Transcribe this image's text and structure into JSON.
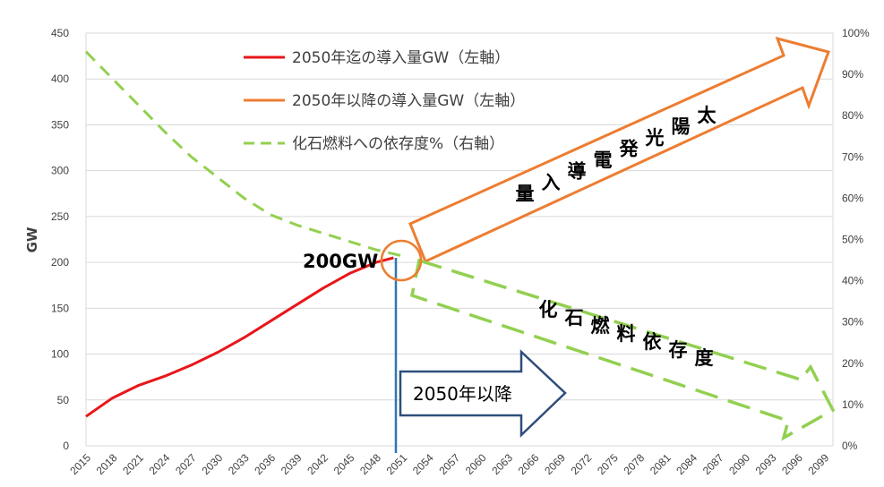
{
  "chart_data": {
    "type": "line",
    "xlabel": "",
    "ylabel": "GW",
    "y2label": "",
    "ylim": [
      0,
      450
    ],
    "y2lim": [
      0,
      100
    ],
    "yticks": [
      "0",
      "50",
      "100",
      "150",
      "200",
      "250",
      "300",
      "350",
      "400",
      "450"
    ],
    "y2ticks": [
      "0%",
      "10%",
      "20%",
      "30%",
      "40%",
      "50%",
      "60%",
      "70%",
      "80%",
      "90%",
      "100%"
    ],
    "xlim": [
      2015,
      2100
    ],
    "xticks": [
      "2015",
      "2018",
      "2021",
      "2024",
      "2027",
      "2030",
      "2033",
      "2036",
      "2039",
      "2042",
      "2045",
      "2048",
      "2051",
      "2054",
      "2057",
      "2060",
      "2063",
      "2066",
      "2069",
      "2072",
      "2075",
      "2078",
      "2081",
      "2084",
      "2087",
      "2090",
      "2093",
      "2096",
      "2099"
    ],
    "grid": true,
    "legend": "top-center",
    "series": [
      {
        "name": "2050年迄の導入量GW（左軸）",
        "axis": "left",
        "color": "#e8161a",
        "style": "solid",
        "x": [
          2015,
          2018,
          2021,
          2024,
          2027,
          2030,
          2033,
          2036,
          2039,
          2042,
          2045,
          2048,
          2050
        ],
        "y": [
          32,
          52,
          66,
          76,
          88,
          102,
          118,
          136,
          154,
          172,
          188,
          200,
          205
        ]
      },
      {
        "name": "2050年以降の導入量GW（左軸）",
        "axis": "left",
        "color": "#ed7d31",
        "style": "solid",
        "x": [],
        "y": []
      },
      {
        "name": "化石燃料への依存度%（右軸）",
        "axis": "right",
        "color": "#92d050",
        "style": "dashed",
        "x": [
          2015,
          2018,
          2021,
          2024,
          2027,
          2030,
          2033,
          2036,
          2039,
          2042,
          2045,
          2048,
          2051
        ],
        "y": [
          95.5,
          89,
          82.5,
          76,
          70,
          65,
          60,
          56,
          53.5,
          51.5,
          49.5,
          47.5,
          46
        ]
      }
    ],
    "annotations": {
      "point_label": "200GW",
      "after_label": "2050年以降",
      "solar_arrow_label": "太陽光発電導入量",
      "fossil_arrow_label": "化石燃料依存度"
    }
  }
}
